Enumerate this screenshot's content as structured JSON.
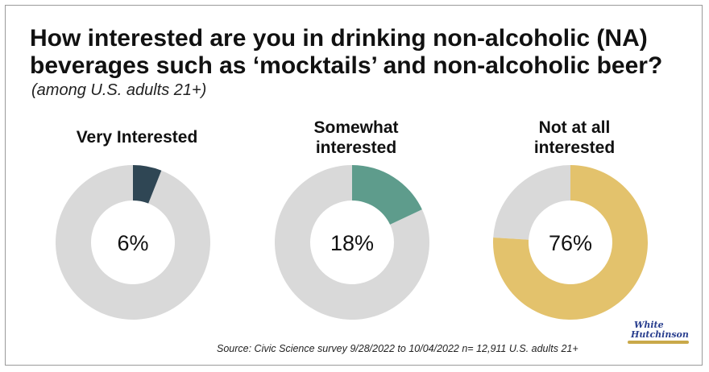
{
  "chart_data": {
    "type": "pie",
    "title": "How interested are you in drinking non-alcoholic (NA) beverages such as ‘mocktails’ and non-alcoholic beer?",
    "subtitle": "(among U.S. adults 21+)",
    "charts": [
      {
        "label_lines": [
          "Very Interested"
        ],
        "value": 6,
        "value_label": "6%",
        "color": "#2f4654"
      },
      {
        "label_lines": [
          "Somewhat",
          "interested"
        ],
        "value": 18,
        "value_label": "18%",
        "color": "#5e9c8c"
      },
      {
        "label_lines": [
          "Not at all",
          "interested"
        ],
        "value": 76,
        "value_label": "76%",
        "color": "#e3c26c"
      }
    ],
    "remainder_color": "#d9d9d9",
    "source": "Source: Civic Science survey 9/28/2022 to 10/04/2022 n= 12,911 U.S. adults 21+"
  },
  "logo": {
    "line1": "White",
    "line2": "Hutchinson"
  }
}
